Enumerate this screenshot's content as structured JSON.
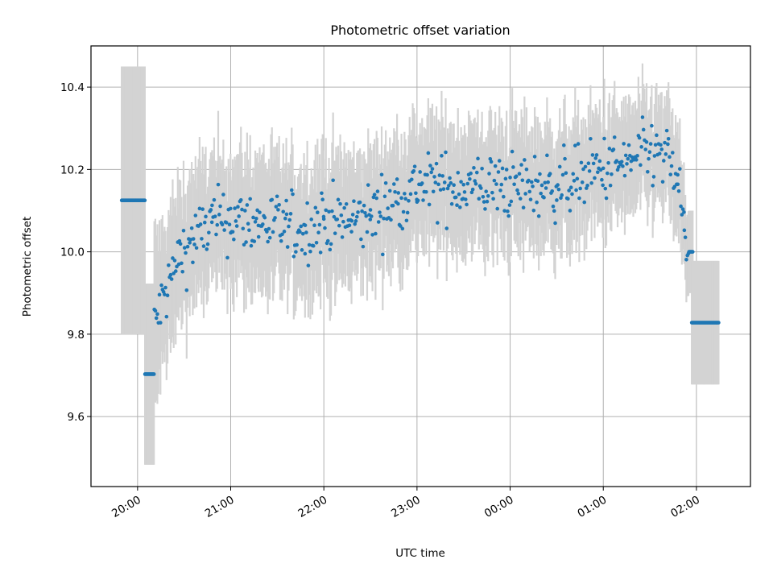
{
  "chart_data": {
    "type": "scatter",
    "title": "Photometric offset variation",
    "xlabel": "UTC time",
    "ylabel": "Photometric offset",
    "x_unit": "hours UTC (values past 24 are after midnight)",
    "xlim": [
      19.5,
      26.58
    ],
    "ylim": [
      9.43,
      10.5
    ],
    "grid": true,
    "x_ticks": [
      {
        "value": 20,
        "label": "20:00"
      },
      {
        "value": 21,
        "label": "21:00"
      },
      {
        "value": 22,
        "label": "22:00"
      },
      {
        "value": 23,
        "label": "23:00"
      },
      {
        "value": 24,
        "label": "00:00"
      },
      {
        "value": 25,
        "label": "01:00"
      },
      {
        "value": 26,
        "label": "02:00"
      }
    ],
    "y_ticks": [
      {
        "value": 9.6,
        "label": "9.6"
      },
      {
        "value": 9.8,
        "label": "9.8"
      },
      {
        "value": 10.0,
        "label": "10.0"
      },
      {
        "value": 10.2,
        "label": "10.2"
      },
      {
        "value": 10.4,
        "label": "10.4"
      }
    ],
    "colors": {
      "points": "#1f77b4",
      "errorbars": "#d3d3d3",
      "grid": "#b0b0b0"
    },
    "series": [
      {
        "style": "points with vertical error bars",
        "segments": [
          {
            "x_start": 19.83,
            "x_end": 20.08,
            "y": 10.125,
            "err": 0.325
          },
          {
            "x_start": 20.08,
            "x_end": 20.18,
            "y": 9.703,
            "err": 0.22
          },
          {
            "x_start": 25.92,
            "x_end": 25.96,
            "y": 10.0,
            "err": 0.1
          },
          {
            "x_start": 25.95,
            "x_end": 26.24,
            "y": 9.828,
            "err": 0.15
          }
        ],
        "trend": [
          {
            "x": 20.18,
            "y": 9.82,
            "err": 0.2
          },
          {
            "x": 20.3,
            "y": 9.9,
            "err": 0.17
          },
          {
            "x": 20.45,
            "y": 9.99,
            "err": 0.15
          },
          {
            "x": 20.6,
            "y": 10.03,
            "err": 0.15
          },
          {
            "x": 20.8,
            "y": 10.07,
            "err": 0.15
          },
          {
            "x": 21.0,
            "y": 10.08,
            "err": 0.15
          },
          {
            "x": 21.3,
            "y": 10.07,
            "err": 0.15
          },
          {
            "x": 21.6,
            "y": 10.06,
            "err": 0.15
          },
          {
            "x": 21.8,
            "y": 10.05,
            "err": 0.15
          },
          {
            "x": 22.0,
            "y": 10.08,
            "err": 0.15
          },
          {
            "x": 22.3,
            "y": 10.07,
            "err": 0.15
          },
          {
            "x": 22.5,
            "y": 10.09,
            "err": 0.14
          },
          {
            "x": 22.8,
            "y": 10.13,
            "err": 0.14
          },
          {
            "x": 23.0,
            "y": 10.16,
            "err": 0.14
          },
          {
            "x": 23.5,
            "y": 10.16,
            "err": 0.14
          },
          {
            "x": 24.0,
            "y": 10.16,
            "err": 0.14
          },
          {
            "x": 24.5,
            "y": 10.16,
            "err": 0.13
          },
          {
            "x": 25.0,
            "y": 10.2,
            "err": 0.13
          },
          {
            "x": 25.3,
            "y": 10.22,
            "err": 0.12
          },
          {
            "x": 25.55,
            "y": 10.24,
            "err": 0.12
          },
          {
            "x": 25.7,
            "y": 10.22,
            "err": 0.12
          },
          {
            "x": 25.8,
            "y": 10.17,
            "err": 0.12
          },
          {
            "x": 25.87,
            "y": 10.05,
            "err": 0.1
          },
          {
            "x": 25.92,
            "y": 10.0,
            "err": 0.1
          }
        ],
        "scatter_sd": 0.04,
        "spacing_hours": 0.011
      }
    ]
  }
}
